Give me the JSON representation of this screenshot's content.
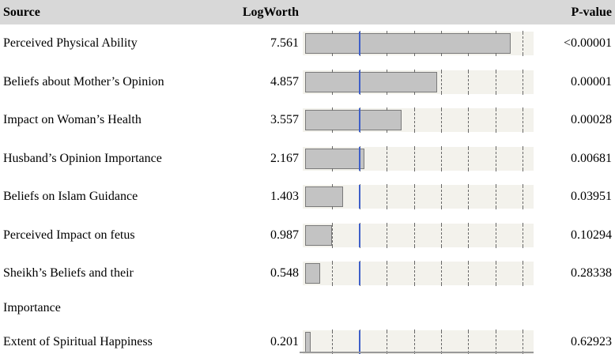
{
  "header": {
    "source": "Source",
    "logworth": "LogWorth",
    "pvalue": "P-value"
  },
  "chart_data": {
    "type": "bar",
    "orientation": "horizontal",
    "title": "",
    "xlabel": "LogWorth",
    "xlim": [
      0,
      8.4
    ],
    "gridlines": [
      1,
      2,
      3,
      4,
      5,
      6,
      7,
      8
    ],
    "reference_line_x": 2,
    "grid_style": "dashed",
    "columns": [
      "Source",
      "LogWorth",
      "P-value"
    ],
    "categories": [
      "Perceived Physical Ability",
      "Beliefs about Mother’s Opinion",
      "Impact on Woman’s Health",
      "Husband’s Opinion Importance",
      "Beliefs on Islam Guidance",
      "Perceived Impact on fetus",
      "Sheikh’s Beliefs and their Importance",
      "Extent of Spiritual Happiness"
    ],
    "values": [
      7.561,
      4.857,
      3.557,
      2.167,
      1.403,
      0.987,
      0.548,
      0.201
    ],
    "rows": [
      {
        "source": "Perceived Physical Ability",
        "source_line2": "",
        "logworth": "7.561",
        "logworth_value": 7.561,
        "pvalue": "<0.00001"
      },
      {
        "source": "Beliefs about Mother’s Opinion",
        "source_line2": "",
        "logworth": "4.857",
        "logworth_value": 4.857,
        "pvalue": "0.00001"
      },
      {
        "source": "Impact on Woman’s Health",
        "source_line2": "",
        "logworth": "3.557",
        "logworth_value": 3.557,
        "pvalue": "0.00028"
      },
      {
        "source": "Husband’s Opinion Importance",
        "source_line2": "",
        "logworth": "2.167",
        "logworth_value": 2.167,
        "pvalue": "0.00681"
      },
      {
        "source": "Beliefs on Islam Guidance",
        "source_line2": "",
        "logworth": "1.403",
        "logworth_value": 1.403,
        "pvalue": "0.03951"
      },
      {
        "source": "Perceived Impact on fetus",
        "source_line2": "",
        "logworth": "0.987",
        "logworth_value": 0.987,
        "pvalue": "0.10294"
      },
      {
        "source": "Sheikh’s Beliefs and their",
        "source_line2": "Importance",
        "logworth": "0.548",
        "logworth_value": 0.548,
        "pvalue": "0.28338"
      },
      {
        "source": "Extent of Spiritual Happiness",
        "source_line2": "",
        "logworth": "0.201",
        "logworth_value": 0.201,
        "pvalue": "0.62923"
      }
    ]
  },
  "colors": {
    "header_bg": "#d8d8d8",
    "strip_bg": "#f3f2ec",
    "bar_fill": "#c3c3c3",
    "bar_border": "#7a7a7a",
    "reference_line": "#3e5fc9",
    "gridline": "#686868",
    "bottom_rule": "#999999"
  }
}
